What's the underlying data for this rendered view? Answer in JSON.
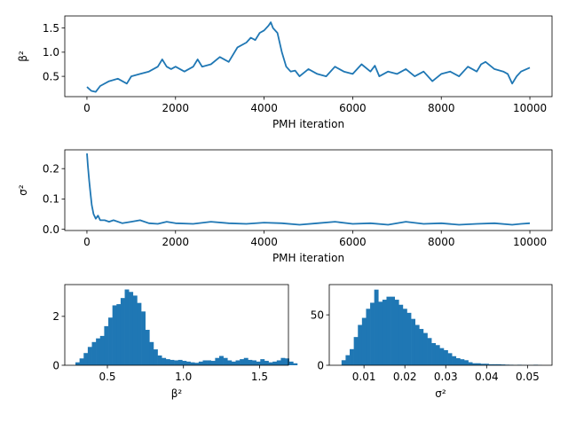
{
  "chart_data": [
    {
      "id": "trace_beta",
      "type": "line",
      "xlabel": "PMH iteration",
      "ylabel": "β²",
      "xlim": [
        -500,
        10500
      ],
      "ylim": [
        0.08,
        1.75
      ],
      "xticks": [
        0,
        2000,
        4000,
        6000,
        8000,
        10000
      ],
      "yticks": [
        0.5,
        1.0,
        1.5
      ],
      "ytick_labels": [
        "0.5",
        "1.0",
        "1.5"
      ],
      "color": "#1f77b4",
      "series": [
        {
          "x": [
            0,
            100,
            200,
            300,
            500,
            700,
            900,
            1000,
            1200,
            1400,
            1600,
            1700,
            1800,
            1900,
            2000,
            2200,
            2400,
            2500,
            2600,
            2800,
            3000,
            3200,
            3400,
            3600,
            3700,
            3800,
            3900,
            4000,
            4100,
            4150,
            4200,
            4300,
            4400,
            4500,
            4600,
            4700,
            4800,
            5000,
            5200,
            5400,
            5600,
            5800,
            6000,
            6200,
            6400,
            6500,
            6600,
            6800,
            7000,
            7200,
            7400,
            7600,
            7800,
            8000,
            8200,
            8400,
            8600,
            8800,
            8900,
            9000,
            9200,
            9400,
            9500,
            9600,
            9700,
            9800,
            10000
          ],
          "y": [
            0.28,
            0.2,
            0.18,
            0.3,
            0.4,
            0.45,
            0.35,
            0.5,
            0.55,
            0.6,
            0.7,
            0.85,
            0.7,
            0.65,
            0.7,
            0.6,
            0.7,
            0.85,
            0.7,
            0.75,
            0.9,
            0.8,
            1.1,
            1.2,
            1.3,
            1.25,
            1.4,
            1.45,
            1.55,
            1.62,
            1.5,
            1.4,
            1.0,
            0.7,
            0.6,
            0.62,
            0.5,
            0.65,
            0.55,
            0.5,
            0.7,
            0.6,
            0.55,
            0.75,
            0.6,
            0.72,
            0.5,
            0.6,
            0.55,
            0.65,
            0.5,
            0.6,
            0.4,
            0.55,
            0.6,
            0.5,
            0.7,
            0.6,
            0.75,
            0.8,
            0.65,
            0.6,
            0.55,
            0.35,
            0.5,
            0.6,
            0.68
          ]
        }
      ]
    },
    {
      "id": "trace_sigma",
      "type": "line",
      "xlabel": "PMH iteration",
      "ylabel": "σ²",
      "xlim": [
        -500,
        10500
      ],
      "ylim": [
        -0.004,
        0.262
      ],
      "xticks": [
        0,
        2000,
        4000,
        6000,
        8000,
        10000
      ],
      "yticks": [
        0.0,
        0.1,
        0.2
      ],
      "ytick_labels": [
        "0.0",
        "0.1",
        "0.2"
      ],
      "color": "#1f77b4",
      "series": [
        {
          "x": [
            0,
            20,
            50,
            80,
            110,
            150,
            200,
            250,
            300,
            400,
            500,
            600,
            800,
            1000,
            1200,
            1400,
            1600,
            1800,
            2000,
            2400,
            2800,
            3200,
            3600,
            4000,
            4400,
            4800,
            5200,
            5600,
            6000,
            6400,
            6800,
            7200,
            7600,
            8000,
            8400,
            8800,
            9200,
            9600,
            9800,
            10000
          ],
          "y": [
            0.25,
            0.21,
            0.16,
            0.12,
            0.08,
            0.05,
            0.035,
            0.045,
            0.03,
            0.03,
            0.025,
            0.03,
            0.02,
            0.025,
            0.03,
            0.02,
            0.018,
            0.025,
            0.02,
            0.018,
            0.025,
            0.02,
            0.018,
            0.022,
            0.02,
            0.015,
            0.02,
            0.025,
            0.018,
            0.02,
            0.015,
            0.025,
            0.018,
            0.02,
            0.015,
            0.018,
            0.02,
            0.015,
            0.018,
            0.02
          ]
        }
      ]
    },
    {
      "id": "hist_beta",
      "type": "bar",
      "xlabel": "β²",
      "ylabel": "",
      "xlim": [
        0.22,
        1.69
      ],
      "ylim": [
        0,
        3.3
      ],
      "xticks": [
        0.5,
        1.0,
        1.5
      ],
      "xtick_labels": [
        "0.5",
        "1.0",
        "1.5"
      ],
      "yticks": [
        0,
        2
      ],
      "ytick_labels": [
        "0",
        "2"
      ],
      "color": "#1f77b4",
      "bin_start": 0.29,
      "bin_width": 0.027,
      "values": [
        0.12,
        0.28,
        0.5,
        0.75,
        0.95,
        1.1,
        1.2,
        1.6,
        1.95,
        2.45,
        2.5,
        2.75,
        3.1,
        3.0,
        2.85,
        2.55,
        2.2,
        1.45,
        0.95,
        0.65,
        0.4,
        0.3,
        0.25,
        0.22,
        0.2,
        0.22,
        0.18,
        0.15,
        0.12,
        0.1,
        0.15,
        0.2,
        0.2,
        0.18,
        0.3,
        0.38,
        0.3,
        0.2,
        0.15,
        0.2,
        0.25,
        0.3,
        0.22,
        0.2,
        0.15,
        0.25,
        0.18,
        0.12,
        0.15,
        0.2,
        0.3,
        0.28,
        0.15,
        0.08
      ]
    },
    {
      "id": "hist_sigma",
      "type": "bar",
      "xlabel": "σ²",
      "ylabel": "",
      "xlim": [
        0.0015,
        0.056
      ],
      "ylim": [
        0,
        80
      ],
      "xticks": [
        0.01,
        0.02,
        0.03,
        0.04,
        0.05
      ],
      "xtick_labels": [
        "0.01",
        "0.02",
        "0.03",
        "0.04",
        "0.05"
      ],
      "yticks": [
        0,
        50
      ],
      "ytick_labels": [
        "0",
        "50"
      ],
      "color": "#1f77b4",
      "bin_start": 0.0045,
      "bin_width": 0.001,
      "values": [
        5,
        10,
        16,
        28,
        40,
        47,
        56,
        62,
        75,
        63,
        65,
        68,
        68,
        65,
        60,
        56,
        52,
        46,
        40,
        36,
        32,
        27,
        22,
        20,
        17,
        15,
        12,
        9,
        7,
        6,
        5,
        3,
        2,
        2,
        1.5,
        1.5,
        1,
        1,
        1,
        0.8,
        0.6,
        0.5,
        0.3,
        0.5,
        0.3,
        0.2,
        0.2,
        0.5,
        0.2
      ]
    }
  ]
}
